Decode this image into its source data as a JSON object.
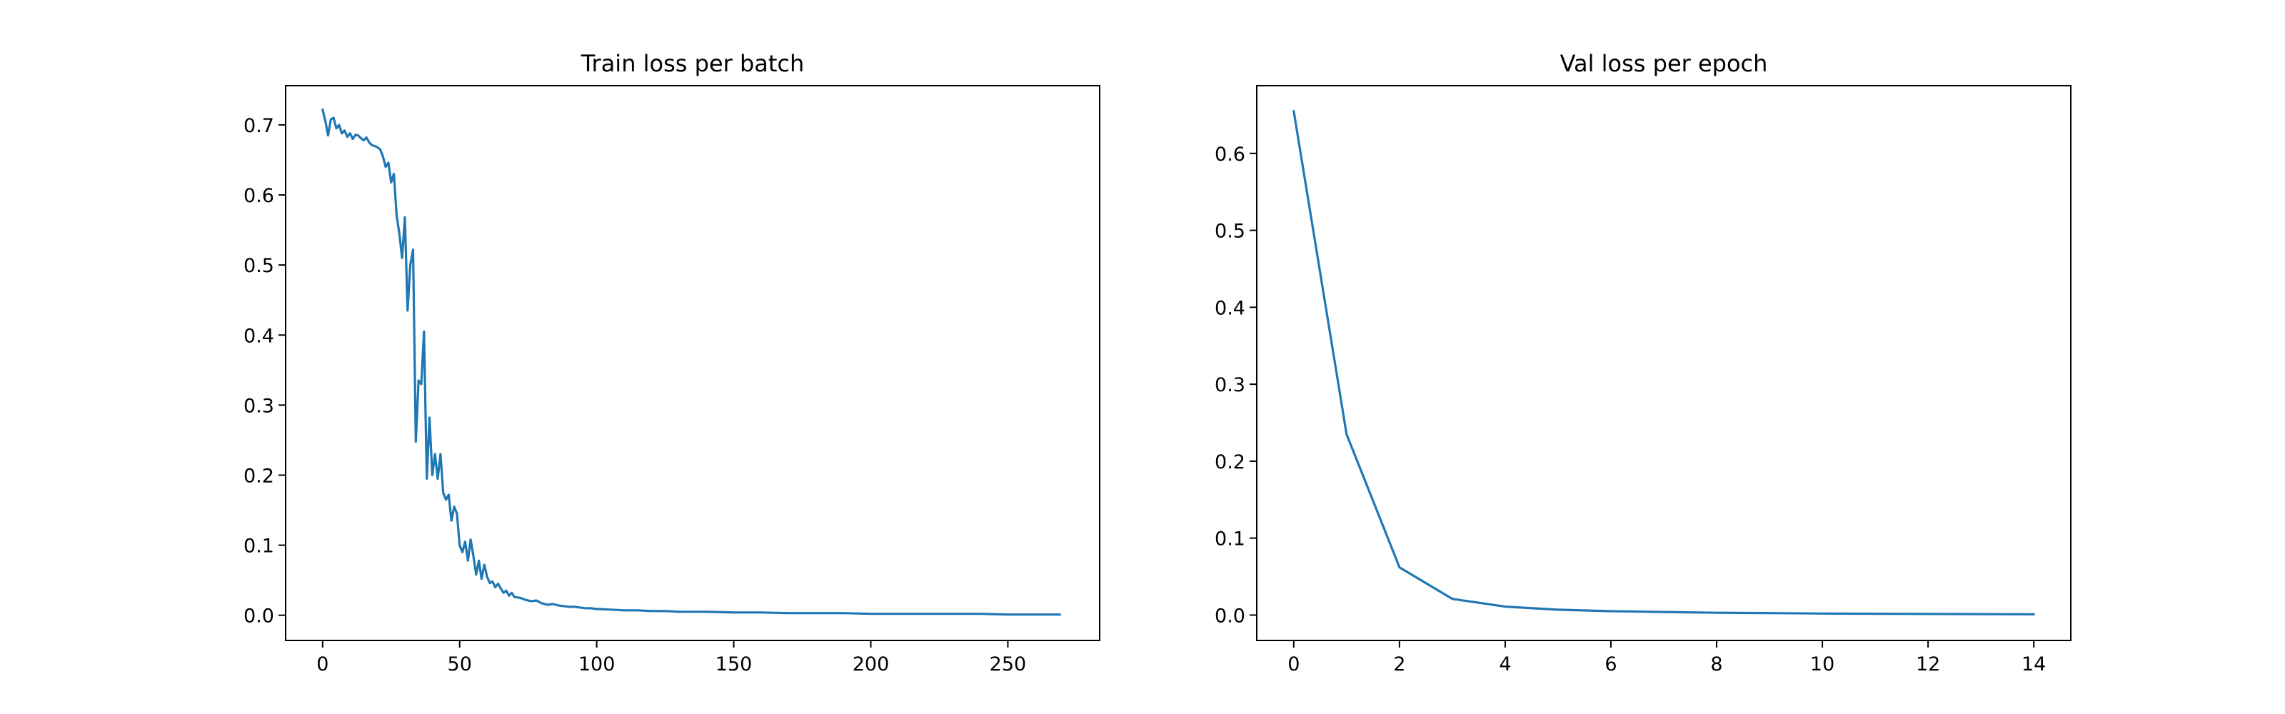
{
  "chart_data": [
    {
      "type": "line",
      "title": "Train loss per batch",
      "xlabel": "",
      "ylabel": "",
      "xlim": [
        -13.5,
        283.5
      ],
      "ylim": [
        -0.036,
        0.756
      ],
      "xticks": [
        0,
        50,
        100,
        150,
        200,
        250
      ],
      "yticks": [
        0.0,
        0.1,
        0.2,
        0.3,
        0.4,
        0.5,
        0.6,
        0.7
      ],
      "ytick_labels": [
        "0.0",
        "0.1",
        "0.2",
        "0.3",
        "0.4",
        "0.5",
        "0.6",
        "0.7"
      ],
      "grid": false,
      "legend": "none",
      "color": "#1f77b4",
      "series": [
        {
          "x": [
            0,
            1,
            2,
            3,
            4,
            5,
            6,
            7,
            8,
            9,
            10,
            11,
            12,
            13,
            14,
            15,
            16,
            17,
            18,
            19,
            20,
            21,
            22,
            23,
            24,
            25,
            26,
            27,
            28,
            29,
            30,
            31,
            32,
            33,
            34,
            35,
            36,
            37,
            38,
            39,
            40,
            41,
            42,
            43,
            44,
            45,
            46,
            47,
            48,
            49,
            50,
            51,
            52,
            53,
            54,
            55,
            56,
            57,
            58,
            59,
            60,
            61,
            62,
            63,
            64,
            65,
            66,
            67,
            68,
            69,
            70,
            72,
            74,
            76,
            78,
            80,
            82,
            84,
            86,
            88,
            90,
            92,
            94,
            96,
            98,
            100,
            105,
            110,
            115,
            120,
            125,
            130,
            140,
            150,
            160,
            170,
            180,
            190,
            200,
            210,
            220,
            230,
            240,
            250,
            260,
            269
          ],
          "values": [
            0.722,
            0.705,
            0.685,
            0.708,
            0.71,
            0.695,
            0.7,
            0.688,
            0.692,
            0.683,
            0.688,
            0.68,
            0.686,
            0.685,
            0.681,
            0.678,
            0.682,
            0.675,
            0.671,
            0.67,
            0.668,
            0.665,
            0.655,
            0.64,
            0.646,
            0.618,
            0.63,
            0.57,
            0.545,
            0.51,
            0.568,
            0.435,
            0.5,
            0.522,
            0.248,
            0.335,
            0.33,
            0.405,
            0.195,
            0.282,
            0.2,
            0.23,
            0.195,
            0.23,
            0.175,
            0.165,
            0.172,
            0.135,
            0.155,
            0.145,
            0.1,
            0.09,
            0.105,
            0.078,
            0.108,
            0.085,
            0.058,
            0.078,
            0.052,
            0.072,
            0.055,
            0.046,
            0.048,
            0.04,
            0.045,
            0.038,
            0.032,
            0.035,
            0.028,
            0.032,
            0.026,
            0.025,
            0.022,
            0.02,
            0.021,
            0.017,
            0.015,
            0.016,
            0.014,
            0.013,
            0.012,
            0.012,
            0.011,
            0.01,
            0.01,
            0.009,
            0.008,
            0.007,
            0.007,
            0.006,
            0.006,
            0.005,
            0.005,
            0.004,
            0.004,
            0.003,
            0.003,
            0.003,
            0.002,
            0.002,
            0.002,
            0.002,
            0.002,
            0.001,
            0.001,
            0.001
          ]
        }
      ]
    },
    {
      "type": "line",
      "title": "Val loss per epoch",
      "xlabel": "",
      "ylabel": "",
      "xlim": [
        -0.7,
        14.7
      ],
      "ylim": [
        -0.033,
        0.688
      ],
      "xticks": [
        0,
        2,
        4,
        6,
        8,
        10,
        12,
        14
      ],
      "yticks": [
        0.0,
        0.1,
        0.2,
        0.3,
        0.4,
        0.5,
        0.6
      ],
      "ytick_labels": [
        "0.0",
        "0.1",
        "0.2",
        "0.3",
        "0.4",
        "0.5",
        "0.6"
      ],
      "grid": false,
      "legend": "none",
      "color": "#1f77b4",
      "series": [
        {
          "x": [
            0,
            1,
            2,
            3,
            4,
            5,
            6,
            7,
            8,
            9,
            10,
            11,
            12,
            13,
            14
          ],
          "values": [
            0.655,
            0.235,
            0.062,
            0.021,
            0.011,
            0.007,
            0.005,
            0.004,
            0.003,
            0.0025,
            0.002,
            0.0017,
            0.0014,
            0.0012,
            0.001
          ]
        }
      ]
    }
  ]
}
